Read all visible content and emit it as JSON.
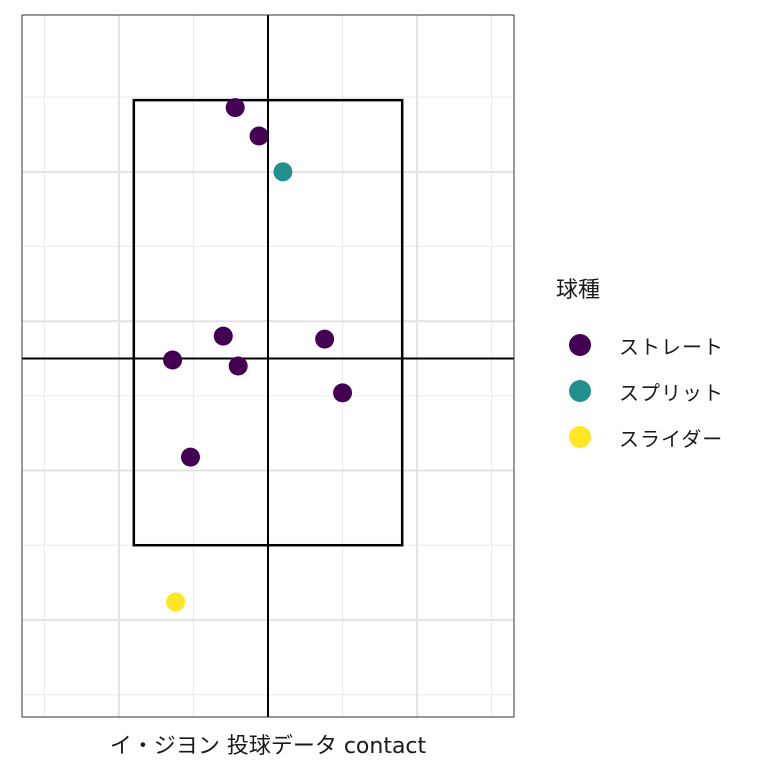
{
  "chart_data": {
    "type": "scatter",
    "title": "",
    "xlabel": "イ・ジヨン 投球データ contact",
    "ylabel": "",
    "xlim": [
      -1.65,
      1.65
    ],
    "ylim": [
      -0.15,
      4.55
    ],
    "grid": true,
    "grid_major_x": [
      -1.0,
      0.0,
      1.0
    ],
    "grid_minor_x": [
      -1.5,
      -0.5,
      0.5,
      1.5
    ],
    "grid_major_y": [
      0.5,
      1.5,
      2.5,
      3.5
    ],
    "grid_minor_y": [
      0.0,
      1.0,
      2.0,
      3.0,
      4.0
    ],
    "center_lines": {
      "x": 0.0,
      "y": 2.25
    },
    "strike_zone": {
      "x": [
        -0.9,
        0.9
      ],
      "y": [
        1.0,
        3.98
      ]
    },
    "legend": {
      "title": "球種",
      "placement": "right",
      "entries": [
        {
          "label": "ストレート",
          "color": "#440154"
        },
        {
          "label": "スプリット",
          "color": "#21908c"
        },
        {
          "label": "スライダー",
          "color": "#fde725"
        }
      ]
    },
    "series": [
      {
        "name": "ストレート",
        "color": "#440154",
        "points": [
          {
            "x": -0.22,
            "y": 3.93
          },
          {
            "x": -0.06,
            "y": 3.74
          },
          {
            "x": -0.3,
            "y": 2.4
          },
          {
            "x": 0.38,
            "y": 2.38
          },
          {
            "x": -0.64,
            "y": 2.24
          },
          {
            "x": -0.2,
            "y": 2.2
          },
          {
            "x": 0.5,
            "y": 2.02
          },
          {
            "x": -0.52,
            "y": 1.59
          }
        ]
      },
      {
        "name": "スプリット",
        "color": "#21908c",
        "points": [
          {
            "x": 0.1,
            "y": 3.5
          }
        ]
      },
      {
        "name": "スライダー",
        "color": "#fde725",
        "points": [
          {
            "x": -0.62,
            "y": 0.62
          }
        ]
      }
    ]
  }
}
